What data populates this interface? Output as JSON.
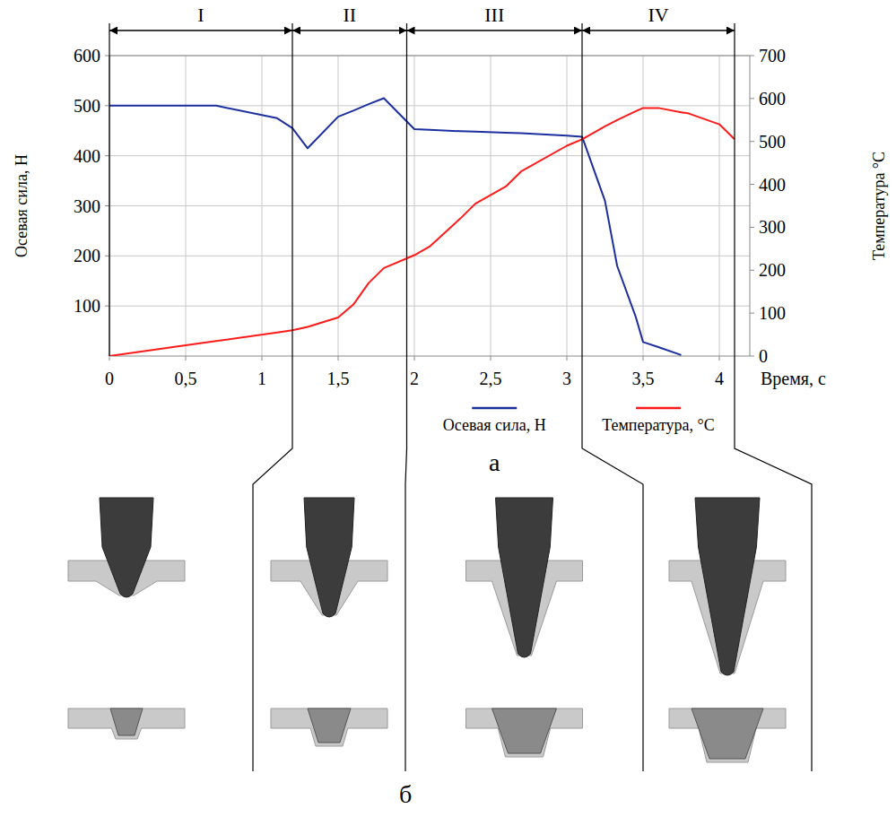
{
  "chart_data": {
    "type": "line",
    "panel_label": "а",
    "x_label": "Время, с",
    "y_label": "Осевая сила, Н",
    "y2_label": "Температура °С",
    "x": [
      0,
      0.5,
      0.7,
      1.1,
      1.2,
      1.3,
      1.5,
      1.6,
      1.7,
      1.8,
      2.0,
      2.1,
      2.3,
      2.4,
      2.6,
      2.7,
      3.0,
      3.1,
      3.25,
      3.33,
      3.45,
      3.5,
      3.6,
      3.75,
      3.8,
      4.0,
      4.1
    ],
    "series": [
      {
        "name": "Осевая сила, Н",
        "color": "#1c2f9e",
        "axis": "y",
        "values": [
          500,
          500,
          500,
          475,
          455,
          415,
          478,
          490,
          503,
          515,
          453,
          452,
          449,
          448,
          446,
          445,
          440,
          438,
          310,
          180,
          80,
          28,
          18,
          2,
          null,
          null,
          null
        ]
      },
      {
        "name": "Температура, °С",
        "color": "#ff1a1a",
        "axis": "y2",
        "values": [
          0,
          25,
          35,
          55,
          60,
          68,
          90,
          120,
          170,
          205,
          235,
          255,
          320,
          355,
          395,
          430,
          490,
          505,
          535,
          550,
          570,
          578,
          578,
          568,
          565,
          540,
          505
        ]
      }
    ],
    "xlim": [
      0,
      4.2
    ],
    "xticks": [
      0,
      {
        "value": 0.5,
        "label": "0,5"
      },
      1,
      {
        "value": 1.5,
        "label": "1,5"
      },
      2,
      {
        "value": 2.5,
        "label": "2,5"
      },
      3,
      {
        "value": 3.5,
        "label": "3,5"
      },
      4
    ],
    "ylim": [
      0,
      600
    ],
    "yticks": [
      100,
      200,
      300,
      400,
      500,
      600
    ],
    "y2lim": [
      0,
      700
    ],
    "y2ticks": [
      0,
      100,
      200,
      300,
      400,
      500,
      600,
      700
    ],
    "grid": true,
    "legend": "bottom",
    "stages": [
      {
        "label": "I",
        "start": 0,
        "end": 1.2
      },
      {
        "label": "II",
        "start": 1.2,
        "end": 1.95
      },
      {
        "label": "III",
        "start": 1.95,
        "end": 3.1
      },
      {
        "label": "IV",
        "start": 3.1,
        "end": 4.1
      }
    ]
  },
  "images": {
    "panel_label": "б"
  }
}
